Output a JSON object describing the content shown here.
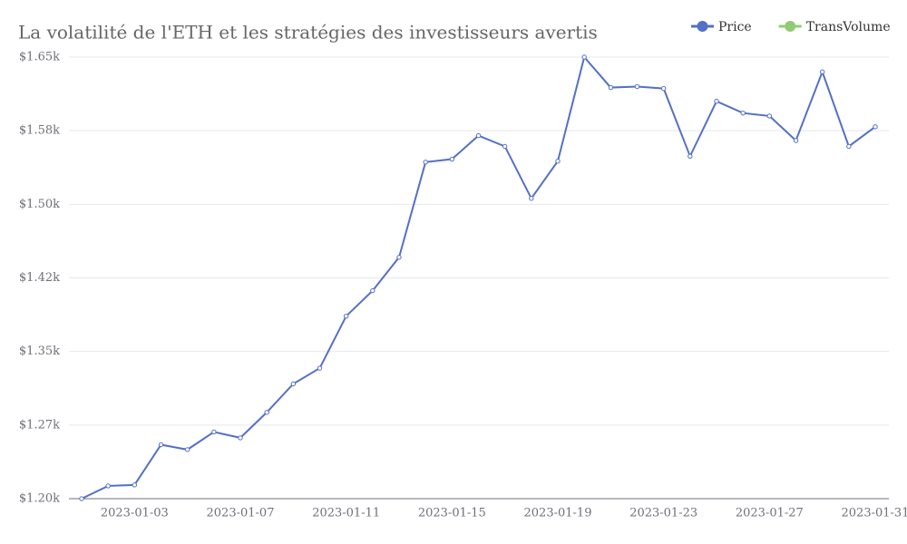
{
  "chart_data": {
    "type": "line",
    "title": "La volatilité de l'ETH et les stratégies des investisseurs avertis",
    "categories": [
      null,
      null,
      "2023-01-03",
      null,
      null,
      null,
      "2023-01-07",
      null,
      null,
      null,
      "2023-01-11",
      null,
      null,
      null,
      "2023-01-15",
      null,
      null,
      null,
      "2023-01-19",
      null,
      null,
      null,
      "2023-01-23",
      null,
      null,
      null,
      "2023-01-27",
      null,
      null,
      null,
      "2023-01-31"
    ],
    "series": [
      {
        "name": "Price",
        "color": "#5470c6",
        "values": [
          1200,
          1213,
          1214,
          1255,
          1250,
          1268,
          1262,
          1288,
          1317,
          1333,
          1386,
          1412,
          1446,
          1543,
          1546,
          1570,
          1559,
          1506,
          1544,
          1650,
          1619,
          1620,
          1618,
          1549,
          1605,
          1593,
          1590,
          1565,
          1635,
          1559,
          1579
        ]
      },
      {
        "name": "TransVolume",
        "color": "#91cc75",
        "values": [
          null,
          null,
          null,
          null,
          null,
          null,
          null,
          null,
          null,
          null,
          null,
          null,
          null,
          null,
          null,
          null,
          null,
          null,
          null,
          null,
          null,
          null,
          null,
          null,
          null,
          null,
          null,
          null,
          null,
          null,
          null
        ]
      }
    ],
    "ylim": [
      1200,
      1650
    ],
    "yticks": [
      {
        "value": 1200,
        "label": "$1.20k"
      },
      {
        "value": 1275,
        "label": "$1.27k"
      },
      {
        "value": 1350,
        "label": "$1.35k"
      },
      {
        "value": 1425,
        "label": "$1.42k"
      },
      {
        "value": 1500,
        "label": "$1.50k"
      },
      {
        "value": 1575,
        "label": "$1.58k"
      },
      {
        "value": 1650,
        "label": "$1.65k"
      }
    ],
    "grid": true
  }
}
